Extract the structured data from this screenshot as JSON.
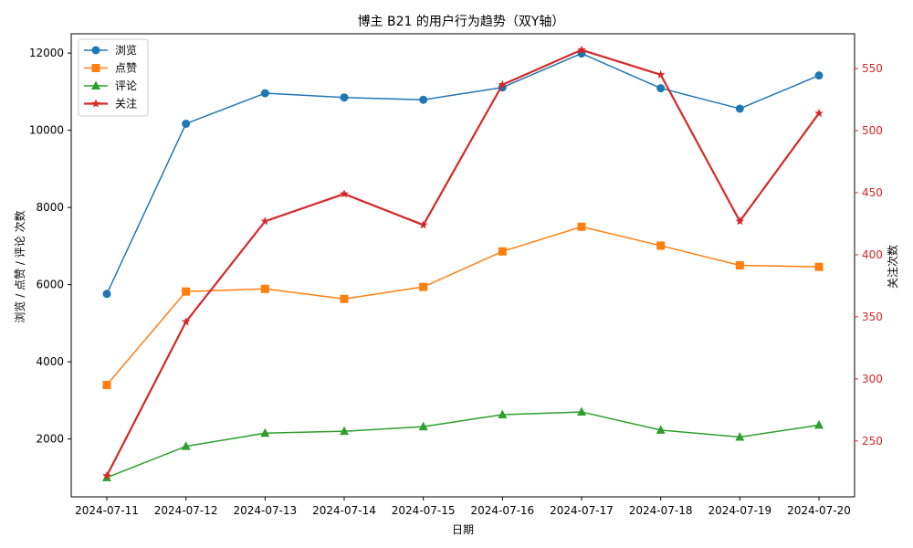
{
  "chart_data": {
    "type": "line",
    "title": "博主 B21 的用户行为趋势（双Y轴）",
    "xlabel": "日期",
    "ylabel_left": "浏览 / 点赞 / 评论 次数",
    "ylabel_right": "关注次数",
    "x": [
      "2024-07-11",
      "2024-07-12",
      "2024-07-13",
      "2024-07-14",
      "2024-07-15",
      "2024-07-16",
      "2024-07-17",
      "2024-07-18",
      "2024-07-19",
      "2024-07-20"
    ],
    "ylim_left": [
      500,
      12500
    ],
    "ylim_right": [
      205,
      578
    ],
    "yticks_left": [
      2000,
      4000,
      6000,
      8000,
      10000,
      12000
    ],
    "yticks_right": [
      250,
      300,
      350,
      400,
      450,
      500,
      550
    ],
    "series": [
      {
        "name": "浏览",
        "axis": "left",
        "color": "#1f77b4",
        "marker": "circle",
        "values": [
          5760,
          10170,
          10960,
          10850,
          10790,
          11110,
          11990,
          11090,
          10560,
          11420
        ]
      },
      {
        "name": "点赞",
        "axis": "left",
        "color": "#ff7f0e",
        "marker": "square",
        "values": [
          3400,
          5820,
          5890,
          5630,
          5940,
          6860,
          7500,
          7010,
          6500,
          6460
        ]
      },
      {
        "name": "评论",
        "axis": "left",
        "color": "#2ca02c",
        "marker": "triangle",
        "values": [
          1000,
          1810,
          2150,
          2200,
          2320,
          2630,
          2700,
          2230,
          2050,
          2360
        ]
      },
      {
        "name": "关注",
        "axis": "right",
        "color": "#d62728",
        "marker": "star",
        "values": [
          222,
          346,
          427,
          449,
          424,
          537,
          565,
          545,
          427,
          514
        ]
      }
    ],
    "legend": "top-left",
    "right_axis_color": "#d62728",
    "grid": false
  }
}
